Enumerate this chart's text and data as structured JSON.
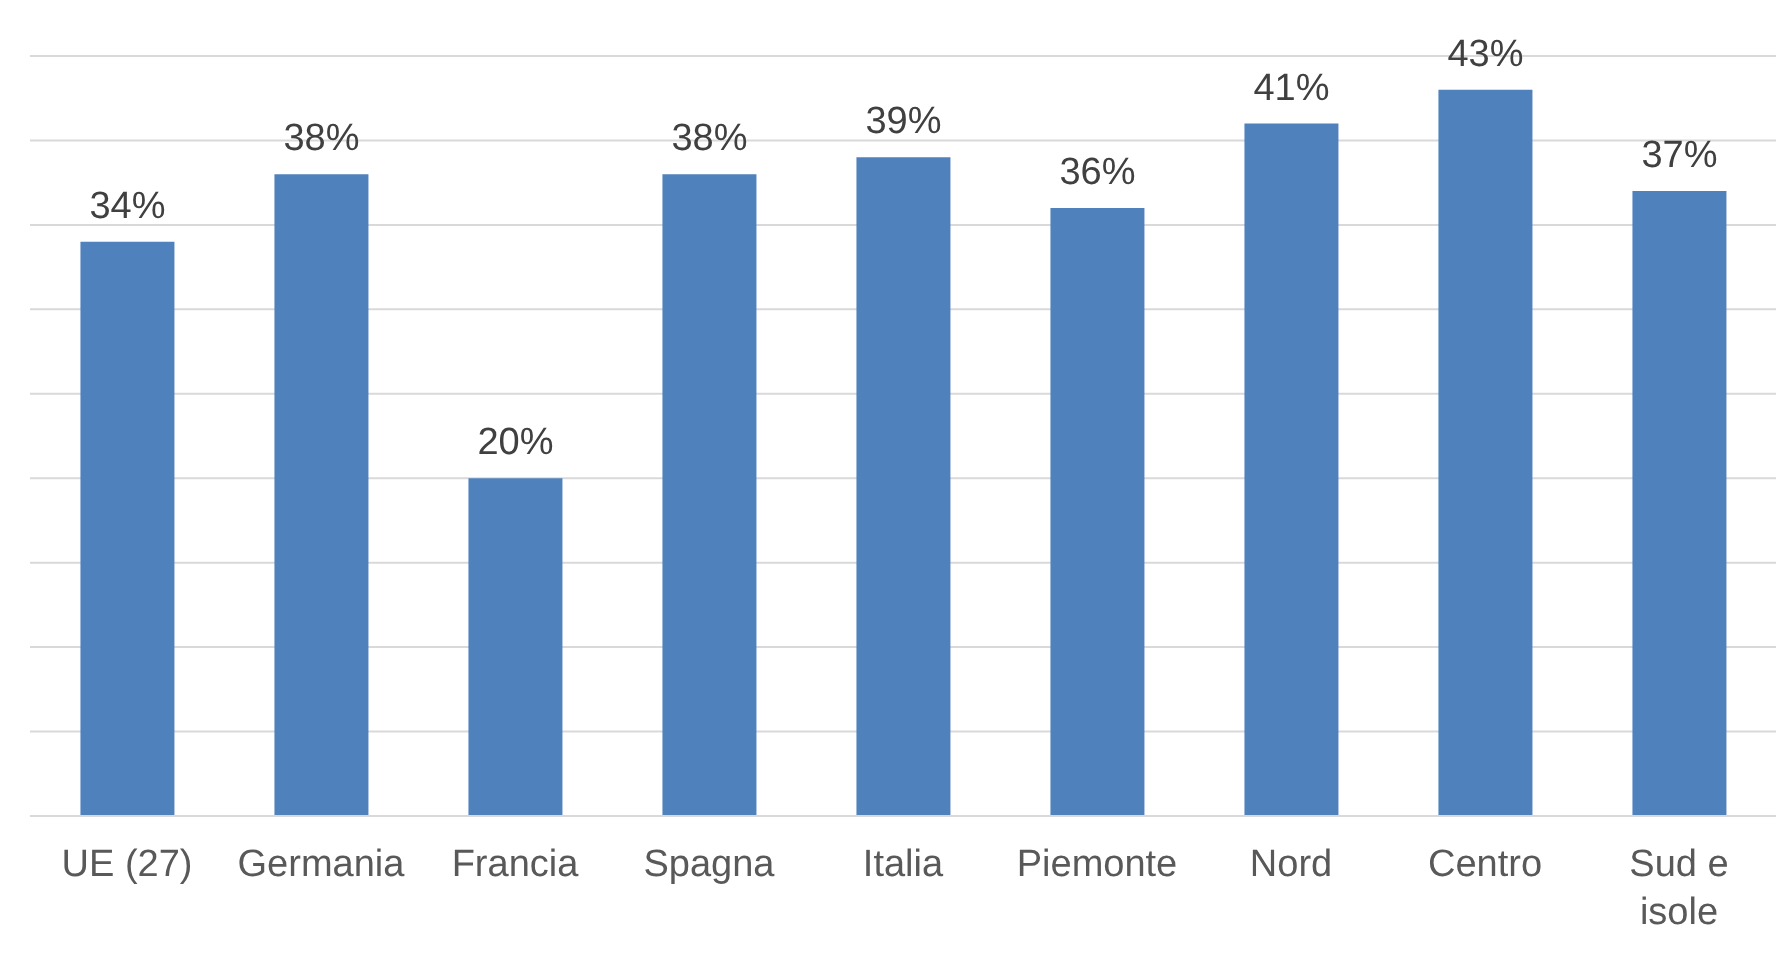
{
  "chart_data": {
    "type": "bar",
    "categories": [
      "UE (27)",
      "Germania",
      "Francia",
      "Spagna",
      "Italia",
      "Piemonte",
      "Nord",
      "Centro",
      "Sud e isole"
    ],
    "values": [
      34,
      38,
      20,
      38,
      39,
      36,
      41,
      43,
      37
    ],
    "value_labels": [
      "34%",
      "38%",
      "20%",
      "38%",
      "39%",
      "36%",
      "41%",
      "43%",
      "37%"
    ],
    "color": "#4f81bd",
    "ylim": [
      0,
      45
    ],
    "yticks": [
      {
        "value": 0,
        "label": null
      },
      {
        "value": 5,
        "label": null
      },
      {
        "value": 10,
        "label": null
      },
      {
        "value": 15,
        "label": null
      },
      {
        "value": 20,
        "label": null
      },
      {
        "value": 25,
        "label": null
      },
      {
        "value": 30,
        "label": null
      },
      {
        "value": 35,
        "label": null
      },
      {
        "value": 40,
        "label": null
      },
      {
        "value": 45,
        "label": null
      }
    ],
    "grid": "y",
    "tick_labels": "x",
    "legend": false
  }
}
